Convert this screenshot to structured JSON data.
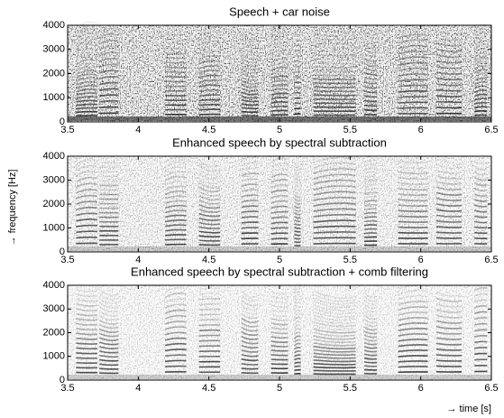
{
  "chart_data": [
    {
      "type": "spectrogram",
      "title": "Speech + car noise",
      "xlim": [
        3.5,
        6.5
      ],
      "xticks": [
        3.5,
        4,
        4.5,
        5,
        5.5,
        6,
        6.5
      ],
      "ylim": [
        0,
        4000
      ],
      "yticks": [
        0,
        1000,
        2000,
        3000,
        4000
      ]
    },
    {
      "type": "spectrogram",
      "title": "Enhanced speech by spectral subtraction",
      "ylabel": "→ frequency [Hz]",
      "xlim": [
        3.5,
        6.5
      ],
      "xticks": [
        3.5,
        4,
        4.5,
        5,
        5.5,
        6,
        6.5
      ],
      "ylim": [
        0,
        4000
      ],
      "yticks": [
        0,
        1000,
        2000,
        3000,
        4000
      ]
    },
    {
      "type": "spectrogram",
      "title": "Enhanced speech by spectral subtraction + comb filtering",
      "xlabel": "→ time [s]",
      "xlim": [
        3.5,
        6.5
      ],
      "xticks": [
        3.5,
        4,
        4.5,
        5,
        5.5,
        6,
        6.5
      ],
      "ylim": [
        0,
        4000
      ],
      "yticks": [
        0,
        1000,
        2000,
        3000,
        4000
      ]
    }
  ]
}
